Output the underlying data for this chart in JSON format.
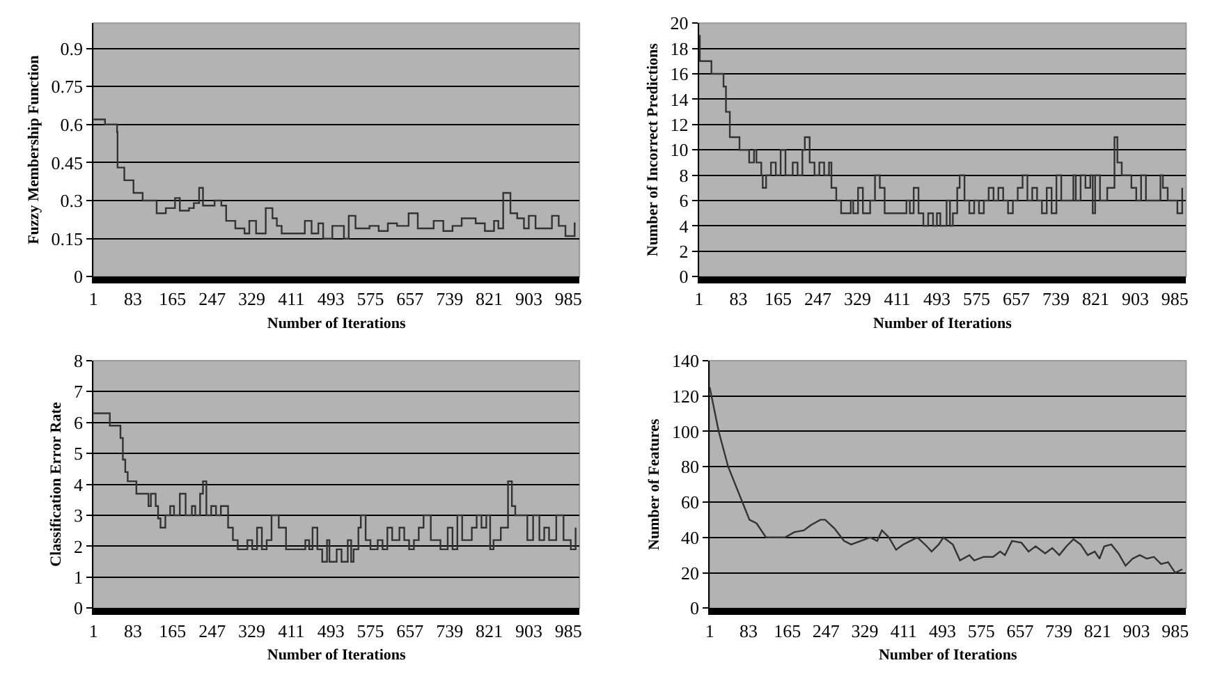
{
  "chart_data": [
    {
      "type": "step",
      "xlabel": "Number of Iterations",
      "ylabel": "Fuzzy Membership Function",
      "xlim": [
        1,
        1008
      ],
      "xticks": [
        1,
        83,
        165,
        247,
        329,
        411,
        493,
        575,
        657,
        739,
        821,
        903,
        985
      ],
      "ylim": [
        0,
        1
      ],
      "yticks": [
        0,
        0.15,
        0.3,
        0.45,
        0.6,
        0.75,
        0.9
      ],
      "grid": "y",
      "series": [
        {
          "color": "#333333",
          "x": [
            1,
            25,
            50,
            51,
            65,
            84,
            103,
            123,
            132,
            151,
            170,
            180,
            199,
            209,
            220,
            228,
            252,
            266,
            276,
            295,
            314,
            324,
            338,
            358,
            372,
            381,
            391,
            429,
            439,
            453,
            467,
            477,
            496,
            520,
            530,
            544,
            573,
            592,
            611,
            630,
            654,
            673,
            697,
            706,
            726,
            745,
            764,
            793,
            812,
            831,
            840,
            850,
            865,
            879,
            893,
            903,
            917,
            941,
            951,
            965,
            979,
            998,
            1000
          ],
          "values": [
            0.62,
            0.6,
            0.57,
            0.43,
            0.38,
            0.33,
            0.3,
            0.3,
            0.25,
            0.27,
            0.31,
            0.26,
            0.27,
            0.29,
            0.35,
            0.28,
            0.3,
            0.28,
            0.22,
            0.19,
            0.17,
            0.22,
            0.17,
            0.27,
            0.23,
            0.2,
            0.17,
            0.17,
            0.22,
            0.17,
            0.21,
            0.15,
            0.2,
            0.15,
            0.24,
            0.19,
            0.2,
            0.18,
            0.21,
            0.2,
            0.25,
            0.19,
            0.19,
            0.22,
            0.18,
            0.2,
            0.23,
            0.21,
            0.18,
            0.22,
            0.19,
            0.33,
            0.25,
            0.23,
            0.19,
            0.24,
            0.19,
            0.19,
            0.24,
            0.2,
            0.16,
            0.21,
            0.21
          ]
        }
      ]
    },
    {
      "type": "step",
      "xlabel": "Number of Iterations",
      "ylabel": "Number of Incorrect Predictions",
      "xlim": [
        1,
        1008
      ],
      "xticks": [
        1,
        83,
        165,
        247,
        329,
        411,
        493,
        575,
        657,
        739,
        821,
        903,
        985
      ],
      "ylim": [
        0,
        20
      ],
      "yticks": [
        0,
        2,
        4,
        6,
        8,
        10,
        12,
        14,
        16,
        18,
        20
      ],
      "grid": "y",
      "series": [
        {
          "color": "#333333",
          "x": [
            1,
            3,
            27,
            47,
            52,
            57,
            65,
            85,
            105,
            115,
            120,
            130,
            133,
            140,
            150,
            160,
            170,
            180,
            195,
            205,
            215,
            220,
            230,
            240,
            250,
            260,
            270,
            275,
            285,
            295,
            315,
            320,
            330,
            340,
            355,
            365,
            375,
            385,
            430,
            437,
            445,
            455,
            465,
            475,
            485,
            493,
            500,
            513,
            520,
            526,
            535,
            540,
            550,
            560,
            570,
            580,
            590,
            600,
            610,
            620,
            630,
            640,
            650,
            660,
            670,
            680,
            690,
            700,
            710,
            720,
            730,
            740,
            750,
            775,
            780,
            790,
            800,
            810,
            815,
            820,
            830,
            845,
            860,
            866,
            875,
            895,
            905,
            915,
            925,
            955,
            960,
            970,
            990,
            1000
          ],
          "values": [
            19,
            17,
            16,
            16,
            15,
            13,
            11,
            10,
            9,
            10,
            9,
            8,
            7,
            8,
            9,
            8,
            10,
            8,
            9,
            8,
            10,
            11,
            9,
            8,
            9,
            8,
            9,
            7,
            6,
            5,
            6,
            5,
            7,
            5,
            6,
            8,
            7,
            5,
            6,
            5,
            7,
            5,
            4,
            5,
            4,
            5,
            4,
            6,
            4,
            5,
            7,
            8,
            6,
            5,
            6,
            5,
            6,
            7,
            6,
            7,
            6,
            5,
            6,
            7,
            8,
            6,
            7,
            6,
            5,
            7,
            5,
            8,
            6,
            8,
            6,
            8,
            7,
            8,
            5,
            8,
            6,
            7,
            11,
            9,
            8,
            7,
            6,
            8,
            6,
            8,
            7,
            6,
            5,
            7
          ]
        }
      ]
    },
    {
      "type": "step",
      "xlabel": "Number of Iterations",
      "ylabel": "Classification Error Rate",
      "xlim": [
        1,
        1008
      ],
      "xticks": [
        1,
        83,
        165,
        247,
        329,
        411,
        493,
        575,
        657,
        739,
        821,
        903,
        985
      ],
      "ylim": [
        0,
        8
      ],
      "yticks": [
        0,
        1,
        2,
        3,
        4,
        5,
        6,
        7,
        8
      ],
      "grid": "y",
      "series": [
        {
          "color": "#333333",
          "x": [
            1,
            35,
            57,
            62,
            67,
            72,
            90,
            115,
            120,
            130,
            135,
            140,
            150,
            160,
            168,
            180,
            192,
            205,
            212,
            222,
            228,
            235,
            245,
            255,
            265,
            280,
            290,
            300,
            320,
            330,
            340,
            350,
            360,
            370,
            385,
            400,
            440,
            448,
            455,
            465,
            475,
            485,
            490,
            505,
            515,
            528,
            535,
            540,
            550,
            555,
            565,
            575,
            590,
            600,
            610,
            620,
            635,
            645,
            655,
            665,
            675,
            685,
            700,
            720,
            735,
            745,
            755,
            765,
            785,
            795,
            805,
            815,
            823,
            830,
            845,
            860,
            868,
            875,
            900,
            912,
            925,
            935,
            945,
            960,
            975,
            990,
            1000
          ],
          "values": [
            6.3,
            5.9,
            5.5,
            4.8,
            4.4,
            4.1,
            3.7,
            3.3,
            3.7,
            3.3,
            2.9,
            2.6,
            3.0,
            3.3,
            3.0,
            3.7,
            3.0,
            3.3,
            3.0,
            3.7,
            4.1,
            3.0,
            3.3,
            3.0,
            3.3,
            2.6,
            2.2,
            1.9,
            2.2,
            1.9,
            2.6,
            1.9,
            2.2,
            3.0,
            2.6,
            1.9,
            2.2,
            1.9,
            2.6,
            1.9,
            1.5,
            2.2,
            1.5,
            1.9,
            1.5,
            2.2,
            1.5,
            1.9,
            2.6,
            3.0,
            2.2,
            1.9,
            2.2,
            1.9,
            2.6,
            2.2,
            2.6,
            2.2,
            1.9,
            2.2,
            2.6,
            3.0,
            2.2,
            1.9,
            2.6,
            1.9,
            3.0,
            2.2,
            2.6,
            3.0,
            2.6,
            3.0,
            1.9,
            2.2,
            2.6,
            4.1,
            3.3,
            3.0,
            2.2,
            3.0,
            2.2,
            2.6,
            2.2,
            3.0,
            2.2,
            1.9,
            2.6
          ]
        }
      ]
    },
    {
      "type": "line",
      "xlabel": "Number of Iterations",
      "ylabel": "Number of Features",
      "xlim": [
        1,
        1008
      ],
      "xticks": [
        1,
        83,
        165,
        247,
        329,
        411,
        493,
        575,
        657,
        739,
        821,
        903,
        985
      ],
      "ylim": [
        0,
        140
      ],
      "yticks": [
        0,
        20,
        40,
        60,
        80,
        100,
        120,
        140
      ],
      "grid": "y",
      "series": [
        {
          "color": "#333333",
          "x": [
            1,
            20,
            40,
            55,
            70,
            85,
            100,
            120,
            140,
            160,
            180,
            200,
            215,
            235,
            245,
            265,
            285,
            300,
            320,
            340,
            355,
            365,
            380,
            395,
            410,
            425,
            440,
            460,
            470,
            485,
            495,
            515,
            530,
            550,
            560,
            580,
            600,
            615,
            625,
            640,
            660,
            675,
            690,
            710,
            725,
            740,
            755,
            770,
            785,
            800,
            815,
            825,
            835,
            850,
            865,
            880,
            895,
            910,
            925,
            940,
            955,
            970,
            985,
            1000
          ],
          "values": [
            125,
            100,
            80,
            70,
            60,
            50,
            48,
            40,
            40,
            40,
            43,
            44,
            47,
            50,
            50,
            45,
            38,
            36,
            38,
            40,
            38,
            44,
            40,
            33,
            36,
            38,
            40,
            35,
            32,
            36,
            40,
            36,
            27,
            30,
            27,
            29,
            29,
            32,
            30,
            38,
            37,
            32,
            35,
            31,
            34,
            30,
            35,
            39,
            36,
            30,
            32,
            28,
            35,
            36,
            31,
            24,
            28,
            30,
            28,
            29,
            25,
            26,
            20,
            22
          ]
        }
      ]
    }
  ]
}
